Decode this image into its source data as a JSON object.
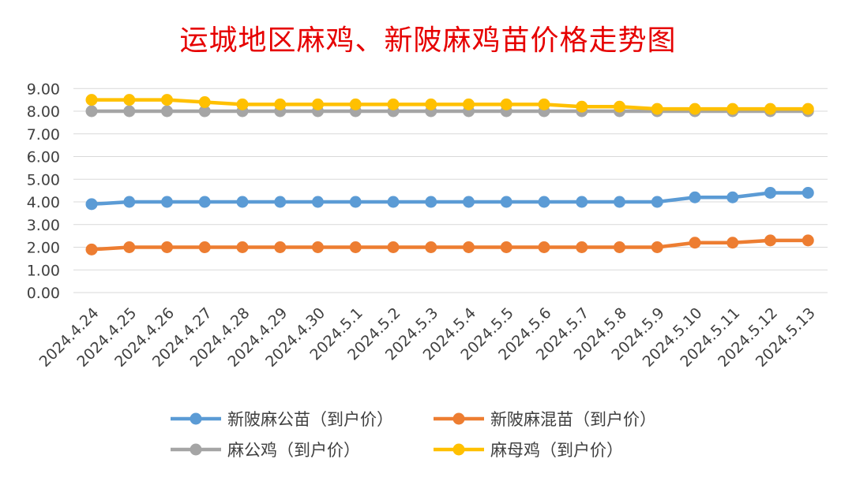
{
  "chart_data": {
    "type": "line",
    "title": "运城地区麻鸡、新陂麻鸡苗价格走势图",
    "categories": [
      "2024.4.24",
      "2024.4.25",
      "2024.4.26",
      "2024.4.27",
      "2024.4.28",
      "2024.4.29",
      "2024.4.30",
      "2024.5.1",
      "2024.5.2",
      "2024.5.3",
      "2024.5.4",
      "2024.5.5",
      "2024.5.6",
      "2024.5.7",
      "2024.5.8",
      "2024.5.9",
      "2024.5.10",
      "2024.5.11",
      "2024.5.12",
      "2024.5.13"
    ],
    "ylim": [
      0,
      9
    ],
    "yticks": [
      "0.00",
      "1.00",
      "2.00",
      "3.00",
      "4.00",
      "5.00",
      "6.00",
      "7.00",
      "8.00",
      "9.00"
    ],
    "grid": true,
    "legend_position": "bottom",
    "series": [
      {
        "name": "新陂麻公苗（到户价）",
        "color": "#5b9bd5",
        "values": [
          3.9,
          4.0,
          4.0,
          4.0,
          4.0,
          4.0,
          4.0,
          4.0,
          4.0,
          4.0,
          4.0,
          4.0,
          4.0,
          4.0,
          4.0,
          4.0,
          4.2,
          4.2,
          4.4,
          4.4
        ]
      },
      {
        "name": "新陂麻混苗（到户价）",
        "color": "#ed7d31",
        "values": [
          1.9,
          2.0,
          2.0,
          2.0,
          2.0,
          2.0,
          2.0,
          2.0,
          2.0,
          2.0,
          2.0,
          2.0,
          2.0,
          2.0,
          2.0,
          2.0,
          2.2,
          2.2,
          2.3,
          2.3
        ]
      },
      {
        "name": "麻公鸡（到户价）",
        "color": "#a5a5a5",
        "values": [
          8.0,
          8.0,
          8.0,
          8.0,
          8.0,
          8.0,
          8.0,
          8.0,
          8.0,
          8.0,
          8.0,
          8.0,
          8.0,
          8.0,
          8.0,
          8.0,
          8.0,
          8.0,
          8.0,
          8.0
        ]
      },
      {
        "name": "麻母鸡（到户价）",
        "color": "#ffc000",
        "values": [
          8.5,
          8.5,
          8.5,
          8.4,
          8.3,
          8.3,
          8.3,
          8.3,
          8.3,
          8.3,
          8.3,
          8.3,
          8.3,
          8.2,
          8.2,
          8.1,
          8.1,
          8.1,
          8.1,
          8.1
        ]
      }
    ]
  }
}
